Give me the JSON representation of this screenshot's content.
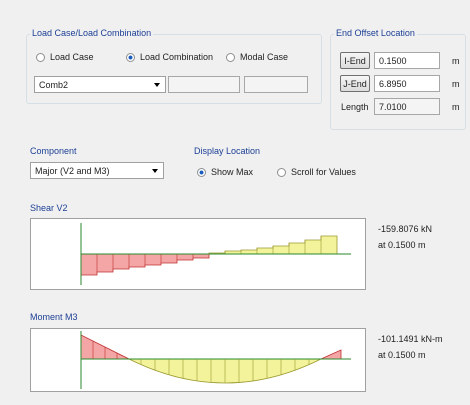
{
  "load_group": {
    "title": "Load Case/Load Combination",
    "options": [
      "Load Case",
      "Load Combination",
      "Modal Case"
    ],
    "combo": "Comb2"
  },
  "end_offset": {
    "title": "End Offset Location",
    "rows": [
      {
        "label": "I-End",
        "value": "0.1500",
        "unit": "m"
      },
      {
        "label": "J-End",
        "value": "6.8950",
        "unit": "m"
      },
      {
        "label": "Length",
        "value": "7.0100",
        "unit": "m"
      }
    ]
  },
  "component": {
    "title": "Component",
    "value": "Major (V2 and M3)"
  },
  "display_location": {
    "title": "Display Location",
    "options": [
      "Show Max",
      "Scroll for Values"
    ]
  },
  "shear": {
    "title": "Shear V2",
    "value": "-159.8076 kN",
    "location": "at 0.1500 m"
  },
  "moment": {
    "title": "Moment M3",
    "value": "-101.1491 kN-m",
    "location": "at 0.1500 m"
  }
}
